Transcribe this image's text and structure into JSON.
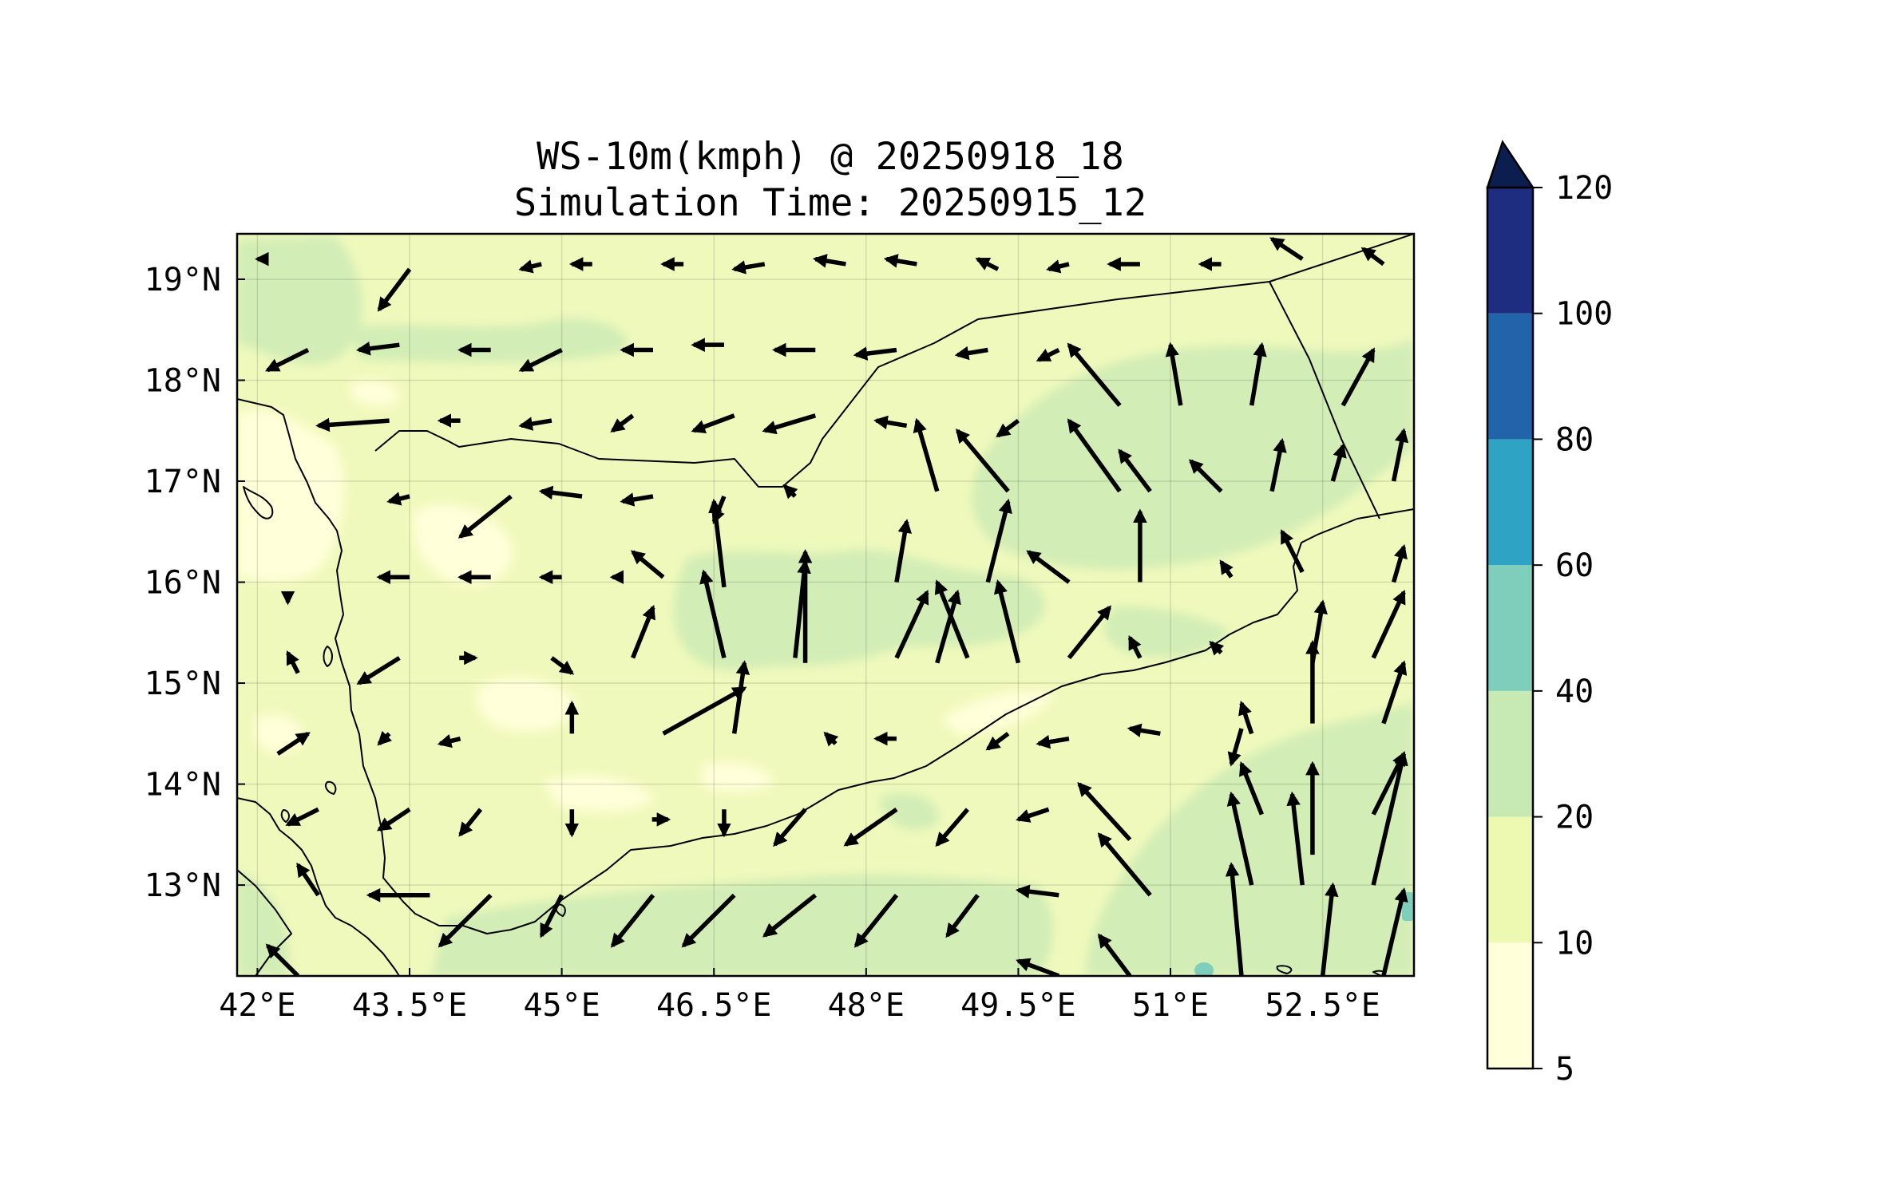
{
  "title_line1": "WS-10m(kmph) @ 20250918_18",
  "title_line2": "Simulation Time: 20250915_12",
  "map": {
    "lon_range": [
      41.8,
      53.4
    ],
    "lat_range": [
      12.1,
      19.45
    ],
    "x_ticks": [
      {
        "lon": 42.0,
        "label": "42°E"
      },
      {
        "lon": 43.5,
        "label": "43.5°E"
      },
      {
        "lon": 45.0,
        "label": "45°E"
      },
      {
        "lon": 46.5,
        "label": "46.5°E"
      },
      {
        "lon": 48.0,
        "label": "48°E"
      },
      {
        "lon": 49.5,
        "label": "49.5°E"
      },
      {
        "lon": 51.0,
        "label": "51°E"
      },
      {
        "lon": 52.5,
        "label": "52.5°E"
      }
    ],
    "y_ticks": [
      {
        "lat": 13.0,
        "label": "13°N"
      },
      {
        "lat": 14.0,
        "label": "14°N"
      },
      {
        "lat": 15.0,
        "label": "15°N"
      },
      {
        "lat": 16.0,
        "label": "16°N"
      },
      {
        "lat": 17.0,
        "label": "17°N"
      },
      {
        "lat": 18.0,
        "label": "18°N"
      },
      {
        "lat": 19.0,
        "label": "19°N"
      }
    ],
    "gridlines": true
  },
  "colorbar": {
    "levels": [
      "5",
      "10",
      "20",
      "40",
      "60",
      "80",
      "100",
      "120"
    ],
    "colors": [
      "#ffffd9",
      "#edf8b1",
      "#c7e9b4",
      "#7fcdbb",
      "#2fa3c4",
      "#2164aa",
      "#1e2d80"
    ],
    "extend_color": "#0c1e50",
    "extend": "max"
  },
  "fill_colors": {
    "band_5_10": "#ffffd9",
    "band_10_20": "#f0f9bc",
    "band_20_40": "#d2edb6",
    "band_40_60": "#7fcdbb"
  },
  "wind_arrows": [
    [
      42.1,
      19.2,
      42.0,
      19.2
    ],
    [
      43.5,
      19.1,
      43.2,
      18.7
    ],
    [
      44.8,
      19.15,
      44.6,
      19.1
    ],
    [
      45.3,
      19.15,
      45.1,
      19.15
    ],
    [
      46.2,
      19.15,
      46.0,
      19.15
    ],
    [
      47.0,
      19.15,
      46.7,
      19.1
    ],
    [
      47.8,
      19.15,
      47.5,
      19.2
    ],
    [
      48.5,
      19.15,
      48.2,
      19.2
    ],
    [
      49.3,
      19.1,
      49.1,
      19.2
    ],
    [
      50.0,
      19.15,
      49.8,
      19.1
    ],
    [
      50.7,
      19.15,
      50.4,
      19.15
    ],
    [
      51.5,
      19.15,
      51.3,
      19.15
    ],
    [
      52.3,
      19.2,
      52.0,
      19.4
    ],
    [
      53.1,
      19.15,
      52.9,
      19.3
    ],
    [
      42.5,
      18.3,
      42.1,
      18.1
    ],
    [
      43.4,
      18.35,
      43.0,
      18.3
    ],
    [
      44.3,
      18.3,
      44.0,
      18.3
    ],
    [
      45.0,
      18.3,
      44.6,
      18.1
    ],
    [
      45.9,
      18.3,
      45.6,
      18.3
    ],
    [
      46.6,
      18.35,
      46.3,
      18.35
    ],
    [
      47.5,
      18.3,
      47.1,
      18.3
    ],
    [
      48.3,
      18.3,
      47.9,
      18.25
    ],
    [
      49.2,
      18.3,
      48.9,
      18.25
    ],
    [
      49.9,
      18.3,
      49.7,
      18.2
    ],
    [
      50.5,
      17.75,
      50.0,
      18.35
    ],
    [
      51.1,
      17.75,
      51.0,
      18.35
    ],
    [
      51.8,
      17.75,
      51.9,
      18.35
    ],
    [
      52.7,
      17.75,
      53.0,
      18.3
    ],
    [
      43.3,
      17.6,
      42.6,
      17.55
    ],
    [
      44.0,
      17.6,
      43.8,
      17.6
    ],
    [
      44.9,
      17.6,
      44.6,
      17.55
    ],
    [
      45.7,
      17.65,
      45.5,
      17.5
    ],
    [
      46.7,
      17.65,
      46.3,
      17.5
    ],
    [
      47.5,
      17.65,
      47.0,
      17.5
    ],
    [
      48.4,
      17.55,
      48.1,
      17.6
    ],
    [
      48.7,
      16.9,
      48.5,
      17.6
    ],
    [
      49.4,
      16.9,
      48.9,
      17.5
    ],
    [
      49.5,
      17.6,
      49.3,
      17.45
    ],
    [
      50.5,
      16.9,
      50.0,
      17.6
    ],
    [
      50.8,
      16.9,
      50.5,
      17.3
    ],
    [
      51.5,
      16.9,
      51.2,
      17.2
    ],
    [
      52.0,
      16.9,
      52.1,
      17.4
    ],
    [
      52.6,
      17.0,
      52.7,
      17.35
    ],
    [
      53.2,
      17.0,
      53.3,
      17.5
    ],
    [
      43.5,
      16.85,
      43.3,
      16.8
    ],
    [
      44.5,
      16.85,
      44.0,
      16.45
    ],
    [
      45.2,
      16.85,
      44.8,
      16.9
    ],
    [
      45.9,
      16.85,
      45.6,
      16.8
    ],
    [
      46.6,
      16.85,
      46.5,
      16.6
    ],
    [
      47.3,
      16.85,
      47.2,
      16.95
    ],
    [
      46.6,
      15.95,
      46.5,
      16.8
    ],
    [
      47.4,
      15.2,
      47.4,
      16.3
    ],
    [
      48.3,
      16.0,
      48.4,
      16.6
    ],
    [
      48.7,
      15.2,
      48.9,
      15.9
    ],
    [
      49.2,
      16.0,
      49.4,
      16.8
    ],
    [
      49.5,
      15.2,
      49.3,
      16.0
    ],
    [
      50.0,
      16.0,
      49.6,
      16.3
    ],
    [
      50.7,
      16.0,
      50.7,
      16.7
    ],
    [
      51.6,
      16.05,
      51.5,
      16.2
    ],
    [
      52.3,
      16.1,
      52.1,
      16.5
    ],
    [
      53.2,
      16.0,
      53.3,
      16.35
    ],
    [
      43.5,
      16.05,
      43.2,
      16.05
    ],
    [
      44.3,
      16.05,
      44.0,
      16.05
    ],
    [
      45.0,
      16.05,
      44.8,
      16.05
    ],
    [
      45.6,
      16.05,
      45.5,
      16.05
    ],
    [
      46.0,
      16.05,
      45.7,
      16.3
    ],
    [
      46.6,
      15.25,
      46.4,
      16.1
    ],
    [
      45.7,
      15.25,
      45.9,
      15.75
    ],
    [
      47.3,
      15.25,
      47.4,
      16.2
    ],
    [
      48.3,
      15.25,
      48.6,
      15.9
    ],
    [
      49.0,
      15.25,
      48.7,
      16.0
    ],
    [
      50.0,
      15.25,
      50.4,
      15.75
    ],
    [
      50.7,
      15.25,
      50.6,
      15.45
    ],
    [
      51.5,
      15.3,
      51.4,
      15.4
    ],
    [
      52.4,
      15.2,
      52.5,
      15.8
    ],
    [
      53.0,
      15.25,
      53.3,
      15.9
    ],
    [
      42.3,
      15.9,
      42.3,
      15.8
    ],
    [
      42.4,
      15.1,
      42.3,
      15.3
    ],
    [
      43.4,
      15.25,
      43.0,
      15.0
    ],
    [
      44.1,
      15.25,
      44.1,
      15.25
    ],
    [
      44.9,
      15.25,
      45.1,
      15.1
    ],
    [
      46.0,
      14.5,
      46.8,
      14.95
    ],
    [
      46.7,
      14.5,
      46.8,
      15.2
    ],
    [
      45.1,
      14.5,
      45.1,
      14.8
    ],
    [
      52.4,
      14.6,
      52.4,
      15.4
    ],
    [
      53.1,
      14.6,
      53.3,
      15.2
    ],
    [
      51.8,
      14.5,
      51.7,
      14.8
    ],
    [
      42.2,
      14.3,
      42.5,
      14.5
    ],
    [
      43.3,
      14.5,
      43.2,
      14.4
    ],
    [
      44.0,
      14.45,
      43.8,
      14.4
    ],
    [
      47.7,
      14.4,
      47.6,
      14.5
    ],
    [
      48.3,
      14.45,
      48.1,
      14.45
    ],
    [
      49.4,
      14.5,
      49.2,
      14.35
    ],
    [
      50.0,
      14.45,
      49.7,
      14.4
    ],
    [
      50.9,
      14.5,
      50.6,
      14.55
    ],
    [
      51.7,
      14.55,
      51.6,
      14.2
    ],
    [
      52.4,
      13.3,
      52.4,
      14.2
    ],
    [
      51.9,
      13.7,
      51.7,
      14.2
    ],
    [
      53.0,
      13.7,
      53.3,
      14.3
    ],
    [
      42.6,
      13.75,
      42.3,
      13.6
    ],
    [
      43.5,
      13.75,
      43.2,
      13.55
    ],
    [
      44.2,
      13.75,
      44.0,
      13.5
    ],
    [
      45.1,
      13.75,
      45.1,
      13.5
    ],
    [
      46.0,
      13.65,
      46.0,
      13.65
    ],
    [
      46.6,
      13.75,
      46.6,
      13.5
    ],
    [
      47.4,
      13.75,
      47.1,
      13.4
    ],
    [
      48.3,
      13.75,
      47.8,
      13.4
    ],
    [
      49.0,
      13.75,
      48.7,
      13.4
    ],
    [
      49.8,
      13.75,
      49.5,
      13.65
    ],
    [
      50.6,
      13.45,
      50.1,
      14.0
    ],
    [
      51.8,
      13.0,
      51.6,
      13.9
    ],
    [
      52.3,
      13.0,
      52.2,
      13.9
    ],
    [
      53.0,
      13.0,
      53.3,
      14.3
    ],
    [
      42.6,
      12.9,
      42.4,
      13.2
    ],
    [
      43.7,
      12.9,
      43.1,
      12.9
    ],
    [
      44.3,
      12.9,
      43.8,
      12.4
    ],
    [
      45.0,
      12.9,
      44.8,
      12.5
    ],
    [
      45.9,
      12.9,
      45.5,
      12.4
    ],
    [
      46.7,
      12.9,
      46.2,
      12.4
    ],
    [
      47.5,
      12.9,
      47.0,
      12.5
    ],
    [
      48.3,
      12.9,
      47.9,
      12.4
    ],
    [
      49.1,
      12.9,
      48.8,
      12.5
    ],
    [
      49.9,
      12.9,
      49.5,
      12.95
    ],
    [
      50.8,
      12.9,
      50.3,
      13.5
    ],
    [
      51.7,
      12.1,
      51.6,
      13.2
    ],
    [
      52.5,
      12.1,
      52.6,
      13.0
    ],
    [
      53.1,
      12.1,
      53.3,
      12.95
    ],
    [
      42.4,
      12.1,
      42.1,
      12.4
    ],
    [
      50.6,
      12.1,
      50.3,
      12.5
    ],
    [
      49.9,
      12.1,
      49.5,
      12.25
    ]
  ]
}
